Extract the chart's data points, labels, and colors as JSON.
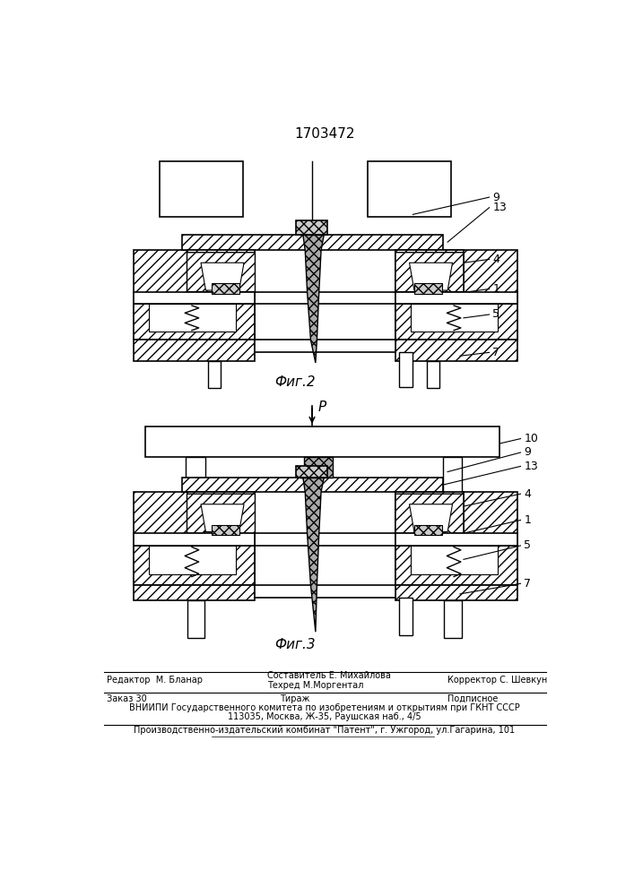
{
  "patent_number": "1703472",
  "fig2_label": "Фиг.2",
  "fig3_label": "Фиг.3",
  "bg_color": "#ffffff",
  "line_color": "#000000",
  "footer_line1_left": "Редактор  М. Бланар",
  "footer_line1_mid": "Составитель Е. Михайлова",
  "footer_line2_mid": "Техред М.Моргентал",
  "footer_line1_right": "Корректор С. Шевкун",
  "footer_line3_left": "Заказ 30",
  "footer_line3_mid": "Тираж",
  "footer_line3_right": "Подписное",
  "footer_line4": "ВНИИПИ Государственного комитета по изобретениям и открытиям при ГКНТ СССР",
  "footer_line5": "113035, Москва, Ж-35, Раушская наб., 4/5",
  "footer_line6": "Производственно-издательский комбинат \"Патент\", г. Ужгород, ул.Гагарина, 101"
}
